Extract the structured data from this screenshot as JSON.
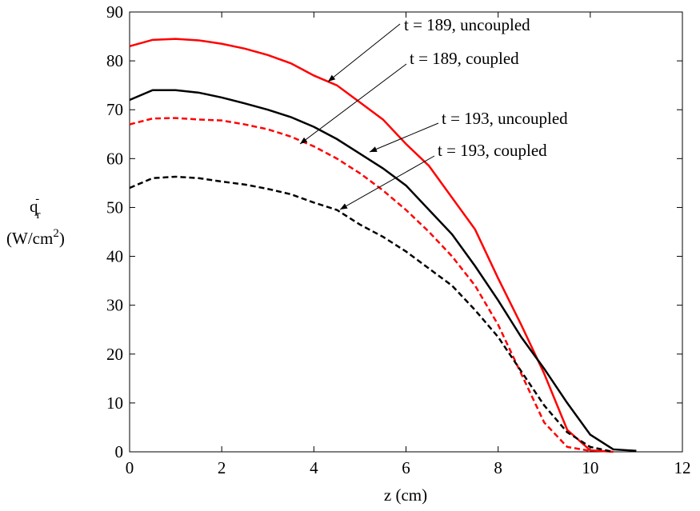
{
  "chart_data": {
    "type": "line",
    "x_label": "z (cm)",
    "y_label": {
      "symbol": "q",
      "sub": "r",
      "sup": "-",
      "unit": "(W/cm",
      "unit_sup": "2",
      "unit_end": ")"
    },
    "x": [
      0,
      0.5,
      1,
      1.5,
      2,
      2.5,
      3,
      3.5,
      4,
      4.5,
      5,
      5.5,
      6,
      6.5,
      7,
      7.5,
      8,
      8.5,
      9,
      9.5,
      10,
      10.5,
      11
    ],
    "series": [
      {
        "color": "#ff0000",
        "dash": false,
        "values": [
          83,
          84.3,
          84.5,
          84.2,
          83.5,
          82.5,
          81.2,
          79.5,
          77,
          75,
          71.5,
          68,
          63,
          58.5,
          52,
          45.5,
          35.5,
          26,
          16,
          4.5,
          0.3,
          0,
          null
        ]
      },
      {
        "color": "#000000",
        "dash": false,
        "values": [
          72,
          74,
          74,
          73.5,
          72.5,
          71.3,
          70,
          68.5,
          66.5,
          64,
          61,
          58,
          54.5,
          49.5,
          44.5,
          38,
          31,
          23.5,
          17,
          10,
          3.5,
          0.5,
          0.2
        ]
      },
      {
        "color": "#ff0000",
        "dash": true,
        "values": [
          67,
          68.2,
          68.3,
          68,
          67.8,
          67,
          66,
          64.5,
          62.5,
          60,
          57,
          53.5,
          49.5,
          45,
          40,
          34,
          26,
          16,
          6,
          1,
          0.2,
          null,
          null
        ]
      },
      {
        "color": "#000000",
        "dash": true,
        "values": [
          54,
          56,
          56.3,
          56,
          55.3,
          54.7,
          53.8,
          52.7,
          51,
          49.5,
          46.5,
          44,
          41,
          37.5,
          34,
          29,
          23.5,
          16.5,
          9.5,
          4,
          1,
          0,
          null
        ]
      }
    ],
    "annotations": [
      "t = 189, uncoupled",
      "t = 189, coupled",
      "t = 193, uncoupled",
      "t = 193, coupled"
    ],
    "xlim": [
      0,
      12
    ],
    "xticks": [
      0,
      2,
      4,
      6,
      8,
      10,
      12
    ],
    "ylim": [
      0,
      90
    ],
    "yticks": [
      0,
      10,
      20,
      30,
      40,
      50,
      60,
      70,
      80,
      90
    ]
  }
}
